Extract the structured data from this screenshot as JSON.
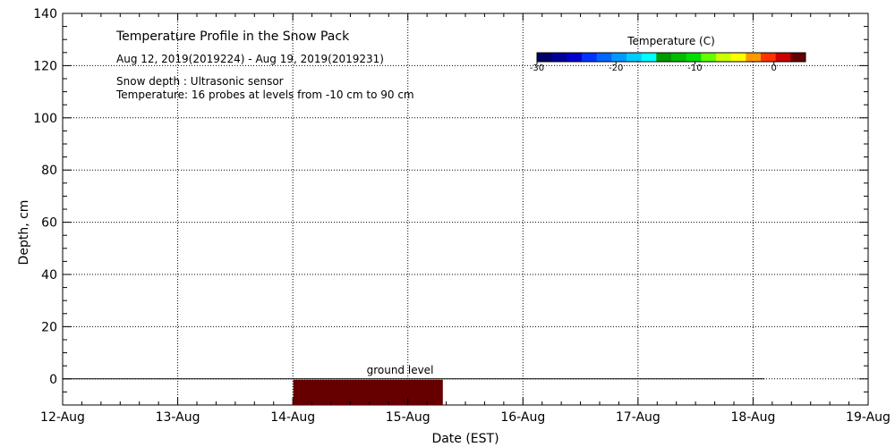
{
  "chart_data": {
    "type": "heatmap",
    "title": "Temperature Profile in the Snow Pack",
    "subtitle": "Aug 12, 2019(2019224) - Aug 19, 2019(2019231)",
    "notes": [
      "Snow depth : Ultrasonic sensor",
      "Temperature: 16 probes at levels from -10 cm to 90 cm"
    ],
    "xlabel": "Date (EST)",
    "ylabel": "Depth, cm",
    "x_ticks": [
      "12-Aug",
      "13-Aug",
      "14-Aug",
      "15-Aug",
      "16-Aug",
      "17-Aug",
      "18-Aug",
      "19-Aug"
    ],
    "y_ticks": [
      0,
      20,
      40,
      60,
      80,
      100,
      120,
      140
    ],
    "xlim": [
      "2019-08-12",
      "2019-08-19"
    ],
    "ylim": [
      -10,
      140
    ],
    "grid": true,
    "ground_line": {
      "y": 0,
      "x_start": "2019-08-12",
      "x_end": "2019-08-19",
      "end_fraction_of_day": 0.1,
      "label": "ground level"
    },
    "filled_region": {
      "x_start": "2019-08-14",
      "x_start_fraction": 0.0,
      "x_end_day_offset": 3.3,
      "y_min": -10,
      "y_max": 0,
      "color": "#660000"
    },
    "colorbar": {
      "title": "Temperature (C)",
      "tick_labels": [
        "-30",
        "-20",
        "-10",
        "0"
      ],
      "tick_values": [
        -30,
        -20,
        -10,
        0
      ],
      "range": [
        -30,
        4
      ],
      "colors": [
        "#000066",
        "#000099",
        "#0000cc",
        "#0033ff",
        "#0066ff",
        "#0099ff",
        "#00ccff",
        "#00ffff",
        "#009900",
        "#00bb00",
        "#00dd00",
        "#66ff00",
        "#ccff00",
        "#ffff00",
        "#ff9900",
        "#ff3300",
        "#cc0000",
        "#660000"
      ]
    }
  }
}
